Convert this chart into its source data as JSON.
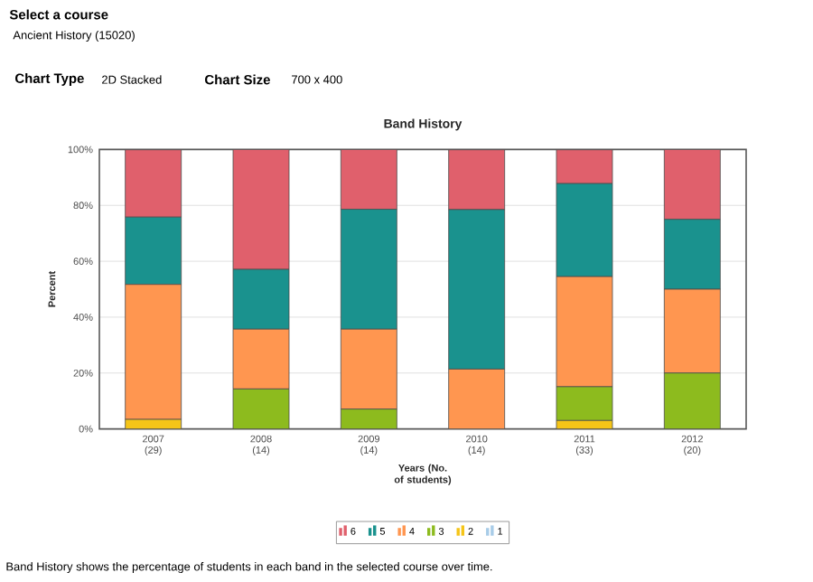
{
  "chart_data": {
    "type": "bar",
    "stacked": true,
    "title": "Band History",
    "xlabel": "Years (No. of students)",
    "ylabel": "Percent",
    "categories": [
      "2007 (29)",
      "2008 (14)",
      "2009 (14)",
      "2010 (14)",
      "2011 (33)",
      "2012 (20)"
    ],
    "series": [
      {
        "name": "1",
        "color": "#a8cce8",
        "values": [
          0,
          0,
          0,
          0,
          0,
          0
        ]
      },
      {
        "name": "2",
        "color": "#f5c518",
        "values": [
          3.4,
          0,
          0,
          0,
          3.0,
          0
        ]
      },
      {
        "name": "3",
        "color": "#8dbb1e",
        "values": [
          0,
          14.3,
          7.1,
          0,
          12.1,
          20
        ]
      },
      {
        "name": "4",
        "color": "#ff9650",
        "values": [
          48.3,
          21.4,
          28.6,
          21.4,
          39.4,
          30
        ]
      },
      {
        "name": "5",
        "color": "#1a928e",
        "values": [
          24.1,
          21.4,
          42.9,
          57.1,
          33.3,
          25
        ]
      },
      {
        "name": "6",
        "color": "#e0606c",
        "values": [
          24.1,
          42.9,
          21.4,
          21.4,
          12.1,
          25
        ]
      }
    ],
    "ylim": [
      0,
      100
    ],
    "yticks": [
      {
        "value": 0,
        "label": "0%"
      },
      {
        "value": 20,
        "label": "20%"
      },
      {
        "value": 40,
        "label": "40%"
      },
      {
        "value": 60,
        "label": "60%"
      },
      {
        "value": 80,
        "label": "80%"
      },
      {
        "value": 100,
        "label": "100%"
      }
    ],
    "grid": "y",
    "legend": "bottom",
    "annotations": [
      "Select a course",
      "Ancient History (15020)",
      "Chart Type",
      "2D Stacked",
      "Chart Size",
      "700 x 400",
      "Band History shows the percentage of students in each band in the selected course over time."
    ]
  }
}
